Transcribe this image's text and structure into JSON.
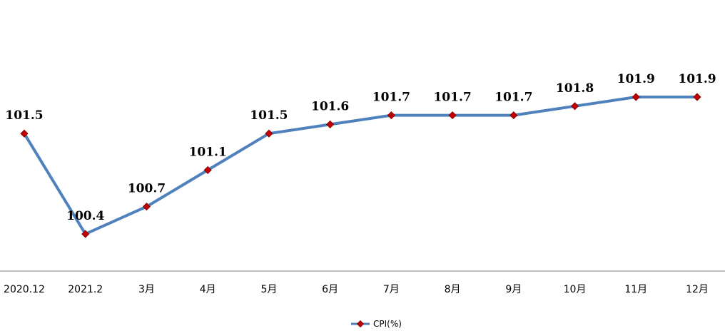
{
  "chart_data": {
    "type": "line",
    "categories": [
      "2020.12",
      "2021.2",
      "3月",
      "4月",
      "5月",
      "6月",
      "7月",
      "8月",
      "9月",
      "10月",
      "11月",
      "12月"
    ],
    "series": [
      {
        "name": "CPI(%)",
        "values": [
          101.5,
          100.4,
          100.7,
          101.1,
          101.5,
          101.6,
          101.7,
          101.7,
          101.7,
          101.8,
          101.9,
          101.9
        ],
        "line_color": "#4F81BD",
        "marker_color": "#C00000",
        "marker": "diamond"
      }
    ],
    "data_labels": [
      "101.5",
      "100.4",
      "100.7",
      "101.1",
      "101.5",
      "101.6",
      "101.7",
      "101.7",
      "101.7",
      "101.8",
      "101.9",
      "101.9"
    ],
    "title": "",
    "xlabel": "",
    "ylabel": "",
    "grid": false,
    "legend_position": "bottom"
  }
}
